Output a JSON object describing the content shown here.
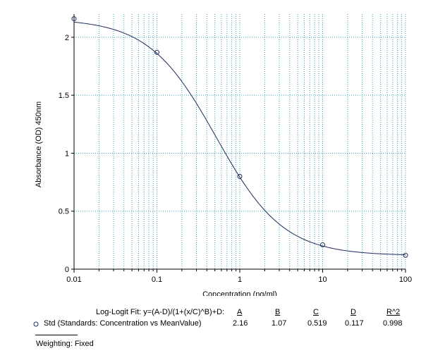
{
  "chart_data": {
    "type": "scatter",
    "title": "",
    "xlabel": "Concentration (ng/ml)",
    "ylabel": "Absorbance (OD) 450nm",
    "x_scale": "log",
    "xlim": [
      0.01,
      100
    ],
    "ylim": [
      0,
      2.2
    ],
    "x_ticks": [
      "0.01",
      "0.1",
      "1",
      "10",
      "100"
    ],
    "y_ticks": [
      "0",
      "0.5",
      "1",
      "1.5",
      "2"
    ],
    "grid": true,
    "series": [
      {
        "name": "Std (Standards: Concentration vs MeanValue)",
        "x": [
          0.01,
          0.1,
          1,
          10,
          100
        ],
        "y": [
          2.16,
          1.87,
          0.8,
          0.21,
          0.12
        ]
      }
    ],
    "fit": {
      "type": "log-logit",
      "A": 2.16,
      "B": 1.07,
      "C": 0.519,
      "D": 0.117
    }
  },
  "fit_table": {
    "title": "Log-Logit Fit: y=(A-D)/(1+(x/C)^B)+D:",
    "headers": [
      "A",
      "B",
      "C",
      "D",
      "R^2"
    ],
    "row_label": "Std (Standards: Concentration vs MeanValue)",
    "values": [
      "2.16",
      "1.07",
      "0.519",
      "0.117",
      "0.998"
    ]
  },
  "weighting": "Weighting: Fixed",
  "colors": {
    "grid": "#39a8b8",
    "curve": "#1f2a5c",
    "marker": "#1f2a5c",
    "axis": "#000000"
  }
}
